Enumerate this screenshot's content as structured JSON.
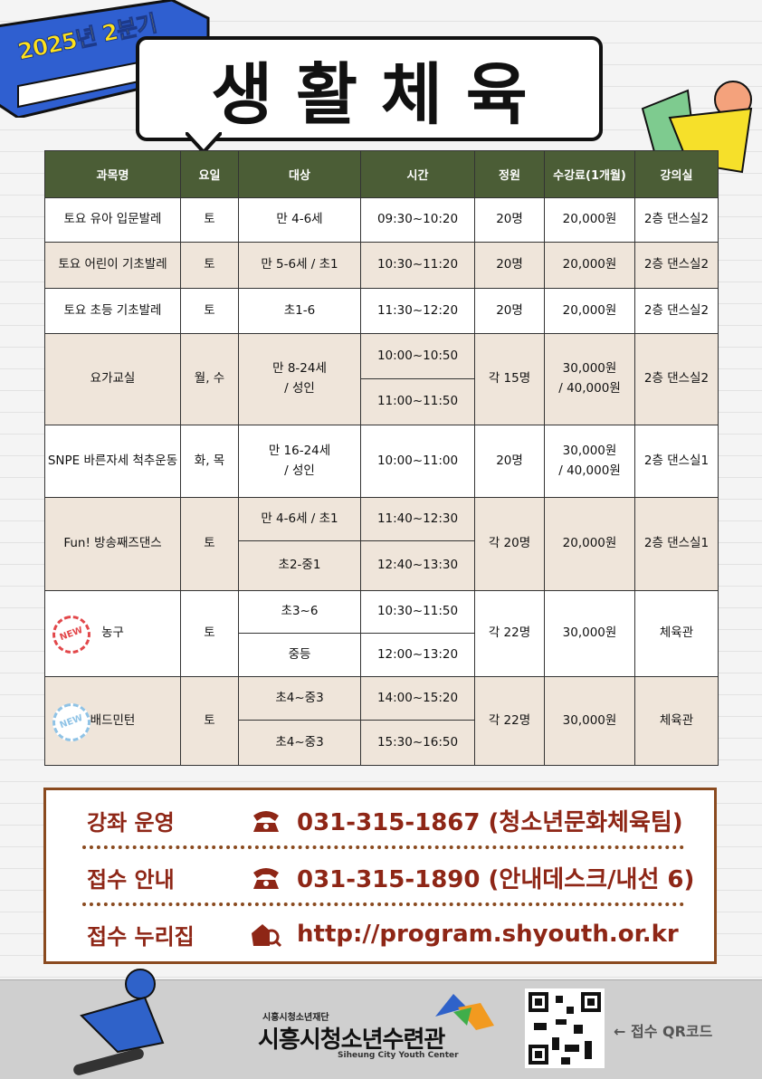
{
  "header": {
    "badge": "2025년 2분기",
    "title": "생 활 체 육"
  },
  "table": {
    "headers": [
      "과목명",
      "요일",
      "대상",
      "시간",
      "정원",
      "수강료(1개월)",
      "강의실"
    ],
    "groups": [
      {
        "name": "토요 유아 입문발레",
        "day": "토",
        "targets": [
          "만 4-6세"
        ],
        "times": [
          "09:30~10:20"
        ],
        "capacity": "20명",
        "fee": "20,000원",
        "room": "2층 댄스실2"
      },
      {
        "name": "토요 어린이 기초발레",
        "day": "토",
        "targets": [
          "만 5-6세 / 초1"
        ],
        "times": [
          "10:30~11:20"
        ],
        "capacity": "20명",
        "fee": "20,000원",
        "room": "2층 댄스실2"
      },
      {
        "name": "토요 초등 기초발레",
        "day": "토",
        "targets": [
          "초1-6"
        ],
        "times": [
          "11:30~12:20"
        ],
        "capacity": "20명",
        "fee": "20,000원",
        "room": "2층 댄스실2"
      },
      {
        "name": "요가교실",
        "day": "월, 수",
        "targets": [
          "만 8-24세\n/ 성인"
        ],
        "times": [
          "10:00~10:50",
          "11:00~11:50"
        ],
        "capacity": "각 15명",
        "fee": "30,000원\n/ 40,000원",
        "room": "2층 댄스실2"
      },
      {
        "name": "SNPE 바른자세 척추운동",
        "day": "화, 목",
        "targets": [
          "만 16-24세\n/ 성인"
        ],
        "times": [
          "10:00~11:00"
        ],
        "capacity": "20명",
        "fee": "30,000원\n/ 40,000원",
        "room": "2층 댄스실1"
      },
      {
        "name": "Fun! 방송째즈댄스",
        "day": "토",
        "targets": [
          "만 4-6세 / 초1",
          "초2-중1"
        ],
        "times": [
          "11:40~12:30",
          "12:40~13:30"
        ],
        "capacity": "각 20명",
        "fee": "20,000원",
        "room": "2층 댄스실1"
      },
      {
        "name": "농구",
        "badge": "NEW",
        "day": "토",
        "targets": [
          "초3~6",
          "중등"
        ],
        "times": [
          "10:30~11:50",
          "12:00~13:20"
        ],
        "capacity": "각 22명",
        "fee": "30,000원",
        "room": "체육관"
      },
      {
        "name": "배드민턴",
        "badge": "NEW",
        "day": "토",
        "targets": [
          "초4~중3",
          "초4~중3"
        ],
        "times": [
          "14:00~15:20",
          "15:30~16:50"
        ],
        "capacity": "각 22명",
        "fee": "30,000원",
        "room": "체육관"
      }
    ]
  },
  "info": [
    {
      "label": "강좌 운영",
      "value": "031-315-1867 (청소년문화체육팀)"
    },
    {
      "label": "접수 안내",
      "value": "031-315-1890 (안내데스크/내선 6)"
    },
    {
      "label": "접수 누리집",
      "value": "http://program.shyouth.or.kr"
    }
  ],
  "footer": {
    "org": "시흥시청소년재단",
    "name": "시흥시청소년수련관",
    "english": "Siheung City Youth Center",
    "qr_caption": "← 접수 QR코드"
  }
}
